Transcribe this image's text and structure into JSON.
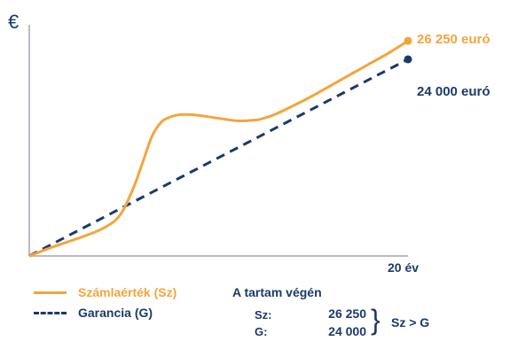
{
  "chart_data": {
    "type": "line",
    "y_unit": "€",
    "x_tick_label": "20 év",
    "xlim": [
      0,
      20
    ],
    "ylim": [
      0,
      29400
    ],
    "grid": false,
    "series": [
      {
        "name": "Számlaérték (Sz)",
        "style": "solid",
        "color": "#f5a43c",
        "x": [
          0,
          1,
          2,
          3,
          4,
          4.8,
          5.5,
          6,
          6.5,
          7,
          7.5,
          8,
          8.5,
          9,
          10,
          11,
          12,
          12.5,
          13,
          14,
          15,
          16,
          17,
          18,
          19,
          20
        ],
        "y": [
          0,
          900,
          1700,
          2500,
          3500,
          5000,
          8300,
          11500,
          14700,
          16400,
          17000,
          17250,
          17250,
          17150,
          16800,
          16500,
          16600,
          16900,
          17300,
          18400,
          19600,
          20900,
          22200,
          23500,
          24800,
          26250
        ]
      },
      {
        "name": "Garancia (G)",
        "style": "dashed",
        "color": "#1a3a6b",
        "x": [
          0,
          20
        ],
        "y": [
          0,
          24000
        ]
      }
    ],
    "end_labels": [
      "26 250 euró",
      "24 000 euró"
    ]
  },
  "legend": {
    "sz_label": "Számlaérték (Sz)",
    "g_label": "Garancia (G)"
  },
  "note": {
    "title": "A tartam végén",
    "sz_key": "Sz:",
    "sz_value": "26 250",
    "g_key": "G:",
    "g_value": "24 000",
    "comparison": "Sz > G"
  },
  "colors": {
    "orange": "#f5a43c",
    "navy": "#1a3a6b",
    "axis": "#b8bcc4"
  }
}
